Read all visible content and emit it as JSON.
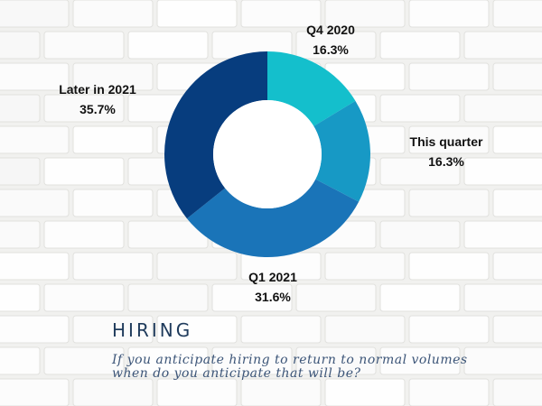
{
  "title": "HIRING",
  "subtitle_lines": [
    "If you anticipate hiring to return to normal volumes",
    "when do you anticipate that will be?"
  ],
  "chart_data": {
    "type": "pie",
    "donut": true,
    "categories": [
      "Q4 2020",
      "This quarter",
      "Q1 2021",
      "Later in 2021"
    ],
    "values": [
      16.3,
      16.3,
      31.6,
      35.7
    ],
    "value_labels": [
      "16.3%",
      "16.3%",
      "31.6%",
      "35.7%"
    ],
    "colors": [
      "#14bfcc",
      "#1799c5",
      "#1a74b8",
      "#073d7e"
    ],
    "start": "12 o'clock",
    "direction": "clockwise"
  }
}
